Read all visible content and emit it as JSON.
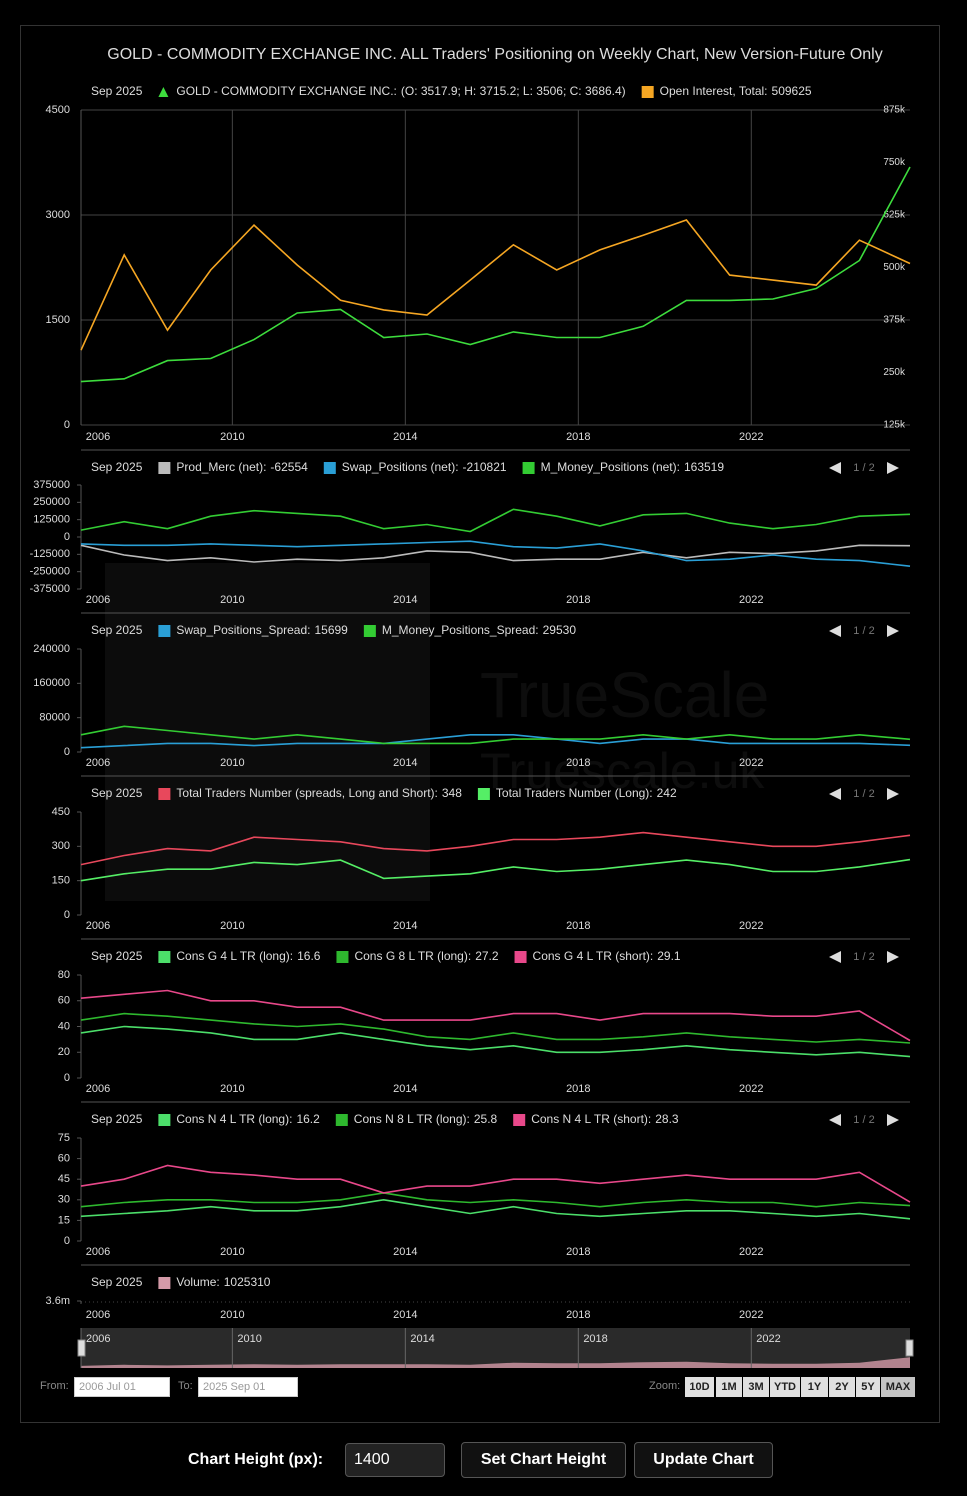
{
  "ui": {
    "title": "GOLD - COMMODITY EXCHANGE INC. ALL Traders' Positioning on Weekly Chart, New Version-Future Only",
    "watermark": [
      "TrueScale",
      "Truescale.uk"
    ],
    "from_label": "From:",
    "from_value": "2006 Jul 01",
    "to_label": "To:",
    "to_value": "2025 Sep 01",
    "zoom_label": "Zoom:",
    "zoom_buttons": [
      "10D",
      "1M",
      "3M",
      "YTD",
      "1Y",
      "2Y",
      "5Y",
      "MAX"
    ],
    "height_label": "Chart Height (px):",
    "height_value": "1400",
    "set_button": "Set Chart Height",
    "update_button": "Update Chart"
  },
  "chart_data": [
    {
      "type": "line",
      "date_label": "Sep 2025",
      "grid": true,
      "x": [
        2006.5,
        2007.5,
        2008.5,
        2009.5,
        2010.5,
        2011.5,
        2012.5,
        2013.5,
        2014.5,
        2015.5,
        2016.5,
        2017.5,
        2018.5,
        2019.5,
        2020.5,
        2021.5,
        2022.5,
        2023.5,
        2024.5,
        2025.67
      ],
      "xlim": [
        2006.5,
        2025.67
      ],
      "xticks": [
        {
          "value": 2006.5,
          "label": "2006"
        },
        2010,
        2014,
        2018,
        2022
      ],
      "ylim": [
        0,
        4500
      ],
      "yticks": [
        0,
        1500,
        3000,
        4500
      ],
      "y2lim": [
        125000,
        875000
      ],
      "y2ticks": [
        {
          "value": 125000,
          "label": "125k"
        },
        {
          "value": 250000,
          "label": "250k"
        },
        {
          "value": 375000,
          "label": "375k"
        },
        {
          "value": 500000,
          "label": "500k"
        },
        {
          "value": 625000,
          "label": "625k"
        },
        {
          "value": 750000,
          "label": "750k"
        },
        {
          "value": 875000,
          "label": "875k"
        }
      ],
      "series": [
        {
          "name": "GOLD - COMMODITY EXCHANGE INC.:",
          "color": "#3ddc3d",
          "marker": "triangle",
          "ohlc_label": "(O: 3517.9; H: 3715.2; L: 3506; C: 3686.4)",
          "values": [
            620,
            660,
            920,
            950,
            1220,
            1600,
            1650,
            1250,
            1300,
            1150,
            1330,
            1250,
            1250,
            1410,
            1780,
            1780,
            1800,
            1950,
            2350,
            3686.4
          ]
        },
        {
          "name": "Open Interest, Total:",
          "color": "#f5a623",
          "axis": "y2",
          "values": [
            303000,
            530000,
            351000,
            494000,
            601000,
            506000,
            422000,
            399000,
            387000,
            470000,
            554000,
            494000,
            542000,
            577000,
            613000,
            482000,
            470000,
            458000,
            565000,
            509625
          ]
        }
      ]
    },
    {
      "type": "line",
      "date_label": "Sep 2025",
      "pager": "1 / 2",
      "x": [
        2006.5,
        2007.5,
        2008.5,
        2009.5,
        2010.5,
        2011.5,
        2012.5,
        2013.5,
        2014.5,
        2015.5,
        2016.5,
        2017.5,
        2018.5,
        2019.5,
        2020.5,
        2021.5,
        2022.5,
        2023.5,
        2024.5,
        2025.67
      ],
      "xlim": [
        2006.5,
        2025.67
      ],
      "xticks": [
        {
          "value": 2006.5,
          "label": "2006"
        },
        2010,
        2014,
        2018,
        2022
      ],
      "ylim": [
        -375000,
        375000
      ],
      "yticks": [
        -375000,
        -250000,
        -125000,
        0,
        125000,
        250000,
        375000
      ],
      "series": [
        {
          "name": "Prod_Merc (net):",
          "color": "#bbbbbb",
          "values": [
            -60000,
            -130000,
            -170000,
            -150000,
            -180000,
            -160000,
            -170000,
            -150000,
            -100000,
            -110000,
            -170000,
            -160000,
            -160000,
            -110000,
            -150000,
            -110000,
            -120000,
            -100000,
            -60000,
            -62554
          ]
        },
        {
          "name": "Swap_Positions (net):",
          "color": "#2a9fd6",
          "values": [
            -50000,
            -60000,
            -60000,
            -50000,
            -60000,
            -70000,
            -60000,
            -50000,
            -40000,
            -30000,
            -70000,
            -80000,
            -50000,
            -100000,
            -170000,
            -160000,
            -130000,
            -160000,
            -170000,
            -210821
          ]
        },
        {
          "name": "M_Money_Positions (net):",
          "color": "#33cc33",
          "values": [
            50000,
            110000,
            60000,
            150000,
            190000,
            170000,
            150000,
            60000,
            90000,
            40000,
            200000,
            150000,
            80000,
            160000,
            170000,
            100000,
            60000,
            90000,
            150000,
            163519
          ]
        }
      ]
    },
    {
      "type": "line",
      "date_label": "Sep 2025",
      "pager": "1 / 2",
      "x": [
        2006.5,
        2007.5,
        2008.5,
        2009.5,
        2010.5,
        2011.5,
        2012.5,
        2013.5,
        2014.5,
        2015.5,
        2016.5,
        2017.5,
        2018.5,
        2019.5,
        2020.5,
        2021.5,
        2022.5,
        2023.5,
        2024.5,
        2025.67
      ],
      "xlim": [
        2006.5,
        2025.67
      ],
      "xticks": [
        {
          "value": 2006.5,
          "label": "2006"
        },
        2010,
        2014,
        2018,
        2022
      ],
      "ylim": [
        0,
        240000
      ],
      "yticks": [
        0,
        80000,
        160000,
        240000
      ],
      "series": [
        {
          "name": "Swap_Positions_Spread:",
          "color": "#2a9fd6",
          "values": [
            10000,
            15000,
            20000,
            20000,
            15000,
            20000,
            20000,
            20000,
            30000,
            40000,
            40000,
            30000,
            20000,
            30000,
            30000,
            20000,
            20000,
            20000,
            20000,
            15699
          ]
        },
        {
          "name": "M_Money_Positions_Spread:",
          "color": "#33cc33",
          "values": [
            40000,
            60000,
            50000,
            40000,
            30000,
            40000,
            30000,
            20000,
            20000,
            20000,
            30000,
            30000,
            30000,
            40000,
            30000,
            40000,
            30000,
            30000,
            40000,
            29530
          ]
        }
      ]
    },
    {
      "type": "line",
      "date_label": "Sep 2025",
      "pager": "1 / 2",
      "x": [
        2006.5,
        2007.5,
        2008.5,
        2009.5,
        2010.5,
        2011.5,
        2012.5,
        2013.5,
        2014.5,
        2015.5,
        2016.5,
        2017.5,
        2018.5,
        2019.5,
        2020.5,
        2021.5,
        2022.5,
        2023.5,
        2024.5,
        2025.67
      ],
      "xlim": [
        2006.5,
        2025.67
      ],
      "xticks": [
        {
          "value": 2006.5,
          "label": "2006"
        },
        2010,
        2014,
        2018,
        2022
      ],
      "ylim": [
        0,
        450
      ],
      "yticks": [
        0,
        150,
        300,
        450
      ],
      "series": [
        {
          "name": "Total Traders Number (spreads, Long and Short):",
          "color": "#e8485c",
          "values": [
            220,
            260,
            290,
            280,
            340,
            330,
            320,
            290,
            280,
            300,
            330,
            330,
            340,
            360,
            340,
            320,
            300,
            300,
            320,
            348
          ]
        },
        {
          "name": "Total Traders Number (Long):",
          "color": "#55ee66",
          "values": [
            150,
            180,
            200,
            200,
            230,
            220,
            240,
            160,
            170,
            180,
            210,
            190,
            200,
            220,
            240,
            220,
            190,
            190,
            210,
            242
          ]
        }
      ]
    },
    {
      "type": "line",
      "date_label": "Sep 2025",
      "pager": "1 / 2",
      "x": [
        2006.5,
        2007.5,
        2008.5,
        2009.5,
        2010.5,
        2011.5,
        2012.5,
        2013.5,
        2014.5,
        2015.5,
        2016.5,
        2017.5,
        2018.5,
        2019.5,
        2020.5,
        2021.5,
        2022.5,
        2023.5,
        2024.5,
        2025.67
      ],
      "xlim": [
        2006.5,
        2025.67
      ],
      "xticks": [
        {
          "value": 2006.5,
          "label": "2006"
        },
        2010,
        2014,
        2018,
        2022
      ],
      "ylim": [
        0,
        80
      ],
      "yticks": [
        0,
        20,
        40,
        60,
        80
      ],
      "series": [
        {
          "name": "Cons G 4 L TR (long):",
          "color": "#4cde6a",
          "values": [
            35,
            40,
            38,
            35,
            30,
            30,
            35,
            30,
            25,
            22,
            25,
            20,
            20,
            22,
            25,
            22,
            20,
            18,
            20,
            16.6
          ]
        },
        {
          "name": "Cons G 8 L TR (long):",
          "color": "#2eb82e",
          "values": [
            45,
            50,
            48,
            45,
            42,
            40,
            42,
            38,
            32,
            30,
            35,
            30,
            30,
            32,
            35,
            32,
            30,
            28,
            30,
            27.2
          ]
        },
        {
          "name": "Cons G 4 L TR (short):",
          "color": "#e8488a",
          "values": [
            62,
            65,
            68,
            60,
            60,
            55,
            55,
            45,
            45,
            45,
            50,
            50,
            45,
            50,
            50,
            50,
            48,
            48,
            52,
            29.1
          ]
        }
      ]
    },
    {
      "type": "line",
      "date_label": "Sep 2025",
      "pager": "1 / 2",
      "x": [
        2006.5,
        2007.5,
        2008.5,
        2009.5,
        2010.5,
        2011.5,
        2012.5,
        2013.5,
        2014.5,
        2015.5,
        2016.5,
        2017.5,
        2018.5,
        2019.5,
        2020.5,
        2021.5,
        2022.5,
        2023.5,
        2024.5,
        2025.67
      ],
      "xlim": [
        2006.5,
        2025.67
      ],
      "xticks": [
        {
          "value": 2006.5,
          "label": "2006"
        },
        2010,
        2014,
        2018,
        2022
      ],
      "ylim": [
        0,
        75
      ],
      "yticks": [
        0,
        15,
        30,
        45,
        60,
        75
      ],
      "series": [
        {
          "name": "Cons N 4 L TR (long):",
          "color": "#4cde6a",
          "values": [
            18,
            20,
            22,
            25,
            22,
            22,
            25,
            30,
            25,
            20,
            25,
            20,
            18,
            20,
            22,
            22,
            20,
            18,
            20,
            16.2
          ]
        },
        {
          "name": "Cons N 8 L TR (long):",
          "color": "#2eb82e",
          "values": [
            25,
            28,
            30,
            30,
            28,
            28,
            30,
            35,
            30,
            28,
            30,
            28,
            25,
            28,
            30,
            28,
            28,
            25,
            28,
            25.8
          ]
        },
        {
          "name": "Cons N 4 L TR (short):",
          "color": "#e8488a",
          "values": [
            40,
            45,
            55,
            50,
            48,
            45,
            45,
            35,
            40,
            40,
            45,
            45,
            42,
            45,
            48,
            45,
            45,
            45,
            50,
            28.3
          ]
        }
      ]
    },
    {
      "type": "area",
      "date_label": "Sep 2025",
      "x": [
        2006.5,
        2007.5,
        2008.5,
        2009.5,
        2010.5,
        2011.5,
        2012.5,
        2013.5,
        2014.5,
        2015.5,
        2016.5,
        2017.5,
        2018.5,
        2019.5,
        2020.5,
        2021.5,
        2022.5,
        2023.5,
        2024.5,
        2025.67
      ],
      "xlim": [
        2006.5,
        2025.67
      ],
      "xticks": [
        {
          "value": 2006.5,
          "label": "2006"
        },
        2010,
        2014,
        2018,
        2022
      ],
      "ylim": [
        0,
        3600000
      ],
      "yticks": [
        {
          "value": 3600000,
          "label": "3.6m"
        }
      ],
      "series": [
        {
          "name": "Volume:",
          "color": "#d49aa8",
          "values": [
            200000,
            300000,
            250000,
            300000,
            350000,
            300000,
            350000,
            350000,
            350000,
            300000,
            500000,
            450000,
            450000,
            550000,
            600000,
            450000,
            400000,
            400000,
            500000,
            1025310
          ]
        }
      ]
    }
  ]
}
